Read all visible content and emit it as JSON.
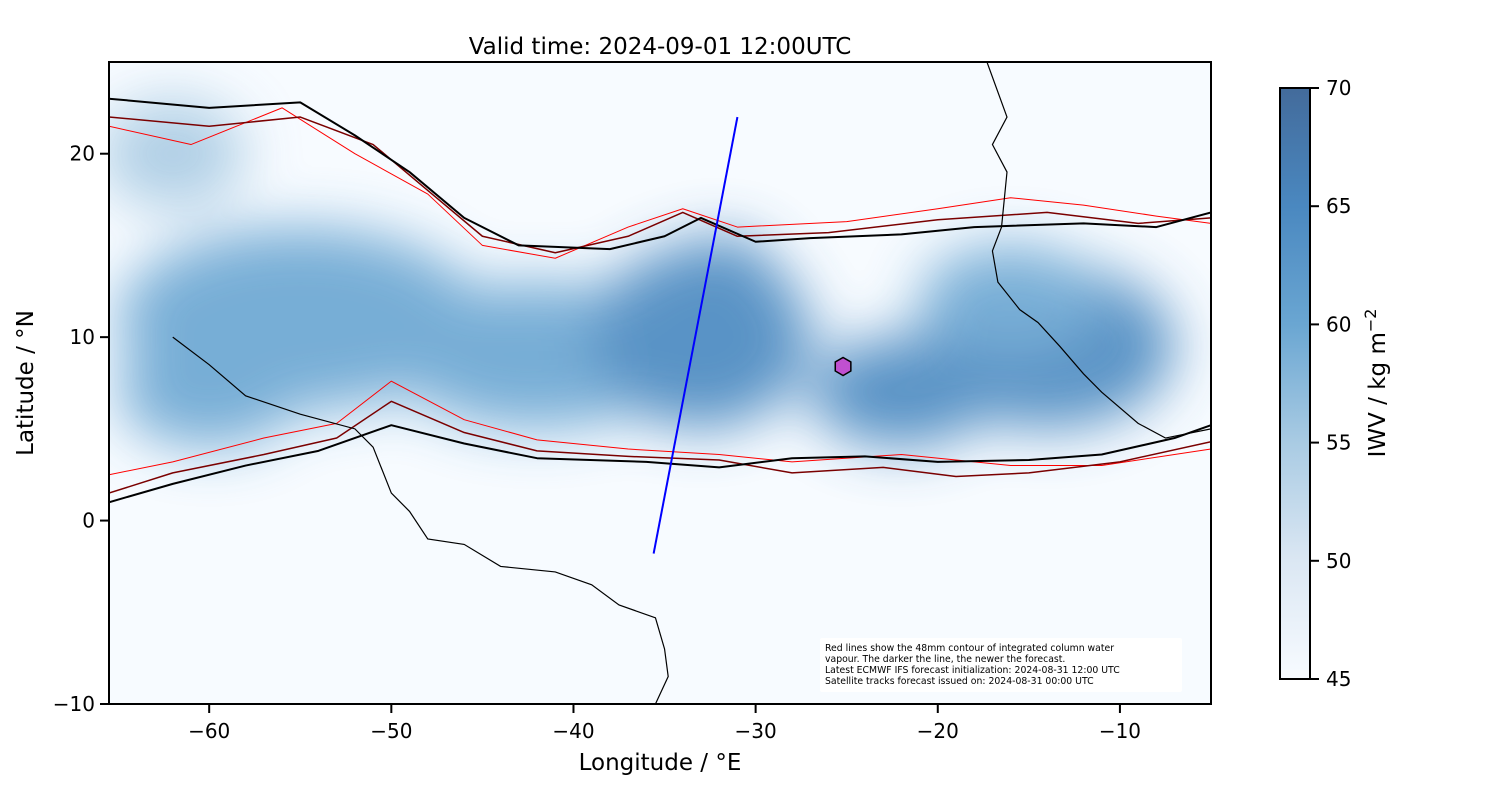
{
  "chart_data": {
    "type": "map",
    "title": "Valid time: 2024-09-01 12:00UTC",
    "xlabel": "Longitude / °E",
    "ylabel": "Latitude / °N",
    "xlim": [
      -65.5,
      -5
    ],
    "ylim": [
      -10,
      25
    ],
    "xticks": [
      -60,
      -50,
      -40,
      -30,
      -20,
      -10
    ],
    "xtick_labels": [
      "−60",
      "−50",
      "−40",
      "−30",
      "−20",
      "−10"
    ],
    "yticks": [
      -10,
      0,
      10,
      20
    ],
    "ytick_labels": [
      "−10",
      "0",
      "10",
      "20"
    ],
    "colorbar": {
      "label": "IWV / kg m",
      "label_sup": "−2",
      "range": [
        45,
        70
      ],
      "ticks": [
        45,
        50,
        55,
        60,
        65,
        70
      ],
      "tick_labels": [
        "45",
        "50",
        "55",
        "60",
        "65",
        "70"
      ],
      "colors": [
        "#f7fbff",
        "#dbe7f3",
        "#a9cbe3",
        "#6aa6d2",
        "#4a88c0",
        "#436b9b"
      ]
    },
    "iwv_blobs": [
      {
        "lon": -55,
        "lat": 11,
        "rlon": 10,
        "rlat": 5,
        "v": 60
      },
      {
        "lon": -42,
        "lat": 9,
        "rlon": 8,
        "rlat": 4,
        "v": 60
      },
      {
        "lon": -33,
        "lat": 10,
        "rlon": 6,
        "rlat": 5,
        "v": 63
      },
      {
        "lon": -32,
        "lat": 13.5,
        "rlon": 3,
        "rlat": 2,
        "v": 65
      },
      {
        "lon": -22,
        "lat": 7,
        "rlon": 5,
        "rlat": 3,
        "v": 63
      },
      {
        "lon": -14,
        "lat": 9.5,
        "rlon": 7,
        "rlat": 4.5,
        "v": 63
      },
      {
        "lon": -16,
        "lat": 12,
        "rlon": 5,
        "rlat": 3,
        "v": 60
      },
      {
        "lon": -62,
        "lat": 20,
        "rlon": 4,
        "rlat": 3,
        "v": 57
      },
      {
        "lon": -60,
        "lat": 7,
        "rlon": 5,
        "rlat": 3,
        "v": 58
      }
    ],
    "contours": [
      {
        "name": "newest",
        "color": "#000000",
        "width": 2,
        "north": [
          [
            -65.5,
            23
          ],
          [
            -60,
            22.5
          ],
          [
            -55,
            22.8
          ],
          [
            -52,
            21
          ],
          [
            -49,
            19
          ],
          [
            -46,
            16.5
          ],
          [
            -43,
            15
          ],
          [
            -38,
            14.8
          ],
          [
            -35,
            15.5
          ],
          [
            -33,
            16.5
          ],
          [
            -30,
            15.2
          ],
          [
            -27,
            15.4
          ],
          [
            -22,
            15.6
          ],
          [
            -18,
            16
          ],
          [
            -12,
            16.2
          ],
          [
            -8,
            16
          ],
          [
            -5,
            16.8
          ]
        ],
        "south": [
          [
            -65.5,
            1
          ],
          [
            -62,
            2
          ],
          [
            -58,
            3
          ],
          [
            -54,
            3.8
          ],
          [
            -50,
            5.2
          ],
          [
            -46,
            4.2
          ],
          [
            -42,
            3.4
          ],
          [
            -36,
            3.2
          ],
          [
            -32,
            2.9
          ],
          [
            -28,
            3.4
          ],
          [
            -24,
            3.5
          ],
          [
            -20,
            3.2
          ],
          [
            -15,
            3.3
          ],
          [
            -11,
            3.6
          ],
          [
            -7,
            4.5
          ],
          [
            -5,
            5.2
          ]
        ]
      },
      {
        "name": "mid",
        "color": "#7a0000",
        "width": 1.5,
        "north": [
          [
            -65.5,
            22
          ],
          [
            -60,
            21.5
          ],
          [
            -55,
            22
          ],
          [
            -51,
            20.5
          ],
          [
            -48,
            18
          ],
          [
            -45,
            15.5
          ],
          [
            -41,
            14.6
          ],
          [
            -37,
            15.5
          ],
          [
            -34,
            16.8
          ],
          [
            -31,
            15.5
          ],
          [
            -26,
            15.7
          ],
          [
            -20,
            16.4
          ],
          [
            -14,
            16.8
          ],
          [
            -9,
            16.2
          ],
          [
            -5,
            16.5
          ]
        ],
        "south": [
          [
            -65.5,
            1.5
          ],
          [
            -62,
            2.6
          ],
          [
            -57,
            3.6
          ],
          [
            -53,
            4.5
          ],
          [
            -50,
            6.5
          ],
          [
            -46,
            4.8
          ],
          [
            -42,
            3.8
          ],
          [
            -37,
            3.5
          ],
          [
            -32,
            3.3
          ],
          [
            -28,
            2.6
          ],
          [
            -23,
            2.9
          ],
          [
            -19,
            2.4
          ],
          [
            -15,
            2.6
          ],
          [
            -10,
            3.2
          ],
          [
            -5,
            4.3
          ]
        ]
      },
      {
        "name": "oldest",
        "color": "#ff0000",
        "width": 1,
        "north": [
          [
            -65.5,
            21.5
          ],
          [
            -61,
            20.5
          ],
          [
            -56,
            22.5
          ],
          [
            -52,
            20
          ],
          [
            -48,
            17.8
          ],
          [
            -45,
            15
          ],
          [
            -41,
            14.3
          ],
          [
            -37,
            16
          ],
          [
            -34,
            17
          ],
          [
            -31,
            16
          ],
          [
            -25,
            16.3
          ],
          [
            -20,
            17
          ],
          [
            -16,
            17.6
          ],
          [
            -12,
            17.2
          ],
          [
            -8,
            16.6
          ],
          [
            -5,
            16.2
          ]
        ],
        "south": [
          [
            -65.5,
            2.5
          ],
          [
            -62,
            3.2
          ],
          [
            -57,
            4.5
          ],
          [
            -53,
            5.3
          ],
          [
            -50,
            7.6
          ],
          [
            -46,
            5.5
          ],
          [
            -42,
            4.4
          ],
          [
            -37,
            3.9
          ],
          [
            -32,
            3.6
          ],
          [
            -28,
            3.2
          ],
          [
            -22,
            3.6
          ],
          [
            -16,
            3.0
          ],
          [
            -11,
            3.0
          ],
          [
            -5,
            3.9
          ]
        ]
      }
    ],
    "coastlines": [
      [
        [
          -62,
          10
        ],
        [
          -60,
          8.5
        ],
        [
          -58,
          6.8
        ],
        [
          -55,
          5.8
        ],
        [
          -52,
          5
        ],
        [
          -51,
          4
        ],
        [
          -50,
          1.5
        ],
        [
          -49,
          0.5
        ],
        [
          -48,
          -1
        ],
        [
          -46,
          -1.3
        ],
        [
          -44,
          -2.5
        ],
        [
          -41,
          -2.8
        ],
        [
          -39,
          -3.5
        ],
        [
          -37.5,
          -4.6
        ],
        [
          -35.5,
          -5.3
        ],
        [
          -35,
          -7
        ],
        [
          -34.8,
          -8.5
        ],
        [
          -35.5,
          -10
        ]
      ],
      [
        [
          -17.3,
          25
        ],
        [
          -16.2,
          22
        ],
        [
          -17,
          20.5
        ],
        [
          -16.2,
          19
        ],
        [
          -16.5,
          16
        ],
        [
          -17,
          14.7
        ],
        [
          -16.7,
          13
        ],
        [
          -15.5,
          11.5
        ],
        [
          -14.5,
          10.8
        ],
        [
          -13.3,
          9.5
        ],
        [
          -12,
          8
        ],
        [
          -11,
          7
        ],
        [
          -9,
          5.3
        ],
        [
          -7.5,
          4.5
        ],
        [
          -5,
          5
        ]
      ]
    ],
    "satellite_track": {
      "color": "#0000ff",
      "points": [
        [
          -35.6,
          -1.8
        ],
        [
          -31,
          22
        ]
      ]
    },
    "marker": {
      "shape": "hexagon",
      "lon": -25.2,
      "lat": 8.4,
      "color": "#c050d0"
    },
    "annotation": [
      "Red lines show the 48mm contour of integrated column water",
      "vapour. The darker the line, the newer the forecast.",
      "Latest ECMWF IFS forecast initialization: 2024-08-31 12:00 UTC",
      "Satellite tracks forecast issued on: 2024-08-31 00:00 UTC"
    ]
  }
}
